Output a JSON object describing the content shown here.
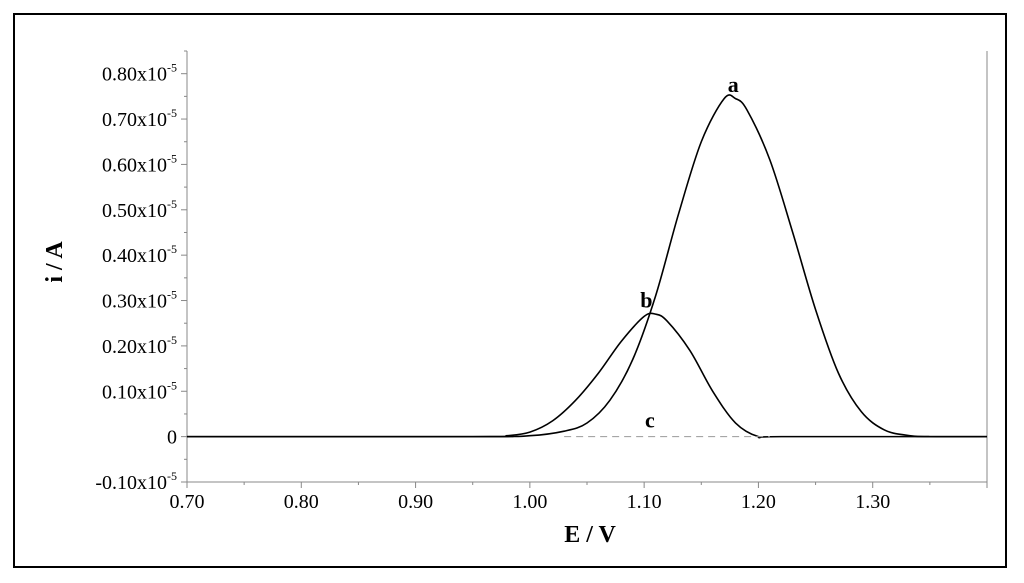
{
  "chart_data": {
    "type": "line",
    "title": "",
    "xlabel": "E / V",
    "ylabel": "i / A",
    "xlim": [
      0.7,
      1.4
    ],
    "ylim": [
      -0.1,
      0.85
    ],
    "y_exponent_label": "-5",
    "x_ticks": [
      {
        "value": 0.7,
        "label": "0.70"
      },
      {
        "value": 0.8,
        "label": "0.80"
      },
      {
        "value": 0.9,
        "label": "0.90"
      },
      {
        "value": 1.0,
        "label": "1.00"
      },
      {
        "value": 1.1,
        "label": "1.10"
      },
      {
        "value": 1.2,
        "label": "1.20"
      },
      {
        "value": 1.3,
        "label": "1.30"
      }
    ],
    "y_ticks": [
      {
        "value": 0.8,
        "label": "0.80x10"
      },
      {
        "value": 0.7,
        "label": "0.70x10"
      },
      {
        "value": 0.6,
        "label": "0.60x10"
      },
      {
        "value": 0.5,
        "label": "0.50x10"
      },
      {
        "value": 0.4,
        "label": "0.40x10"
      },
      {
        "value": 0.3,
        "label": "0.30x10"
      },
      {
        "value": 0.2,
        "label": "0.20x10"
      },
      {
        "value": 0.1,
        "label": "0.10x10"
      },
      {
        "value": 0.0,
        "label": "0",
        "plain": true
      },
      {
        "value": -0.1,
        "label": "-0.10x10"
      }
    ],
    "grid": false,
    "series": [
      {
        "name": "a",
        "style": "solid",
        "x": [
          0.7,
          0.95,
          1.0,
          1.03,
          1.05,
          1.07,
          1.09,
          1.11,
          1.13,
          1.15,
          1.17,
          1.18,
          1.19,
          1.21,
          1.23,
          1.25,
          1.27,
          1.29,
          1.31,
          1.33,
          1.35,
          1.4
        ],
        "y": [
          0.0,
          0.0,
          0.002,
          0.012,
          0.03,
          0.08,
          0.17,
          0.31,
          0.49,
          0.65,
          0.745,
          0.745,
          0.72,
          0.61,
          0.45,
          0.28,
          0.14,
          0.055,
          0.015,
          0.003,
          0.0,
          0.0
        ]
      },
      {
        "name": "b",
        "style": "solid",
        "x": [
          0.7,
          0.96,
          0.98,
          1.0,
          1.02,
          1.04,
          1.06,
          1.08,
          1.1,
          1.11,
          1.12,
          1.14,
          1.16,
          1.18,
          1.2,
          1.22,
          1.4
        ],
        "y": [
          0.0,
          0.0,
          0.002,
          0.01,
          0.035,
          0.08,
          0.14,
          0.21,
          0.265,
          0.27,
          0.255,
          0.19,
          0.1,
          0.03,
          0.0,
          0.0,
          0.0
        ]
      },
      {
        "name": "c",
        "style": "dashed",
        "x": [
          1.03,
          1.21
        ],
        "y": [
          0.0,
          0.0
        ]
      }
    ],
    "annotations": [
      {
        "text": "a",
        "x": 1.178,
        "y": 0.76
      },
      {
        "text": "b",
        "x": 1.102,
        "y": 0.285
      },
      {
        "text": "c",
        "x": 1.105,
        "y": 0.02
      }
    ],
    "colors": {
      "line": "#000000",
      "dashed": "#999999"
    }
  }
}
